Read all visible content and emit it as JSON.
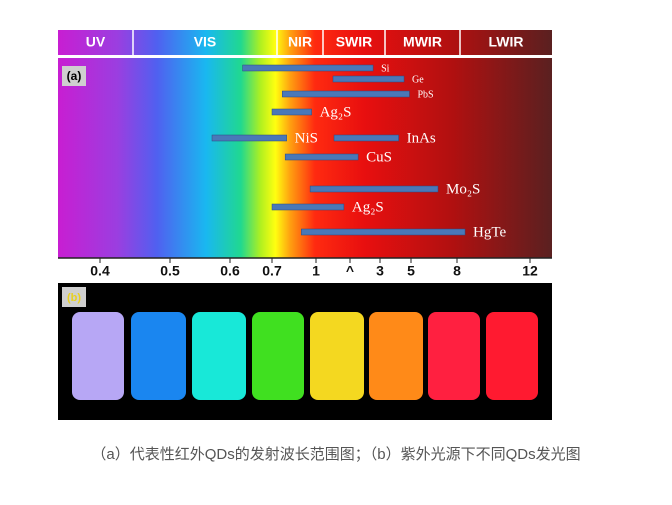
{
  "chart_data": {
    "type": "range",
    "panel_label": "(a)",
    "bands": [
      "UV",
      "VIS",
      "NIR",
      "SWIR",
      "MWIR",
      "LWIR"
    ],
    "categories": [
      "Si",
      "Ge",
      "PbS",
      "Ag₂S",
      "NiS",
      "InAs",
      "CuS",
      "Mo₂S",
      "Ag₂S",
      "HgTe"
    ],
    "start": [
      0.63,
      1.5,
      0.77,
      0.7,
      0.57,
      1.53,
      0.79,
      0.96,
      0.7,
      0.9
    ],
    "end": [
      2.77,
      4.55,
      4.9,
      0.97,
      0.8,
      4.2,
      2.27,
      6.76,
      1.82,
      8.44
    ],
    "color": "#4a78b8",
    "xlim": [
      0.34,
      13.2
    ],
    "xticks": [
      0.4,
      0.5,
      0.6,
      0.7,
      1,
      {
        "value": 2,
        "label": "^"
      },
      3,
      5,
      8,
      12
    ]
  },
  "photo": {
    "panel_label": "(b)"
  },
  "caption": "（a）代表性红外QDs的发射波长范围图；（b）紫外光源下不同QDs发光图"
}
